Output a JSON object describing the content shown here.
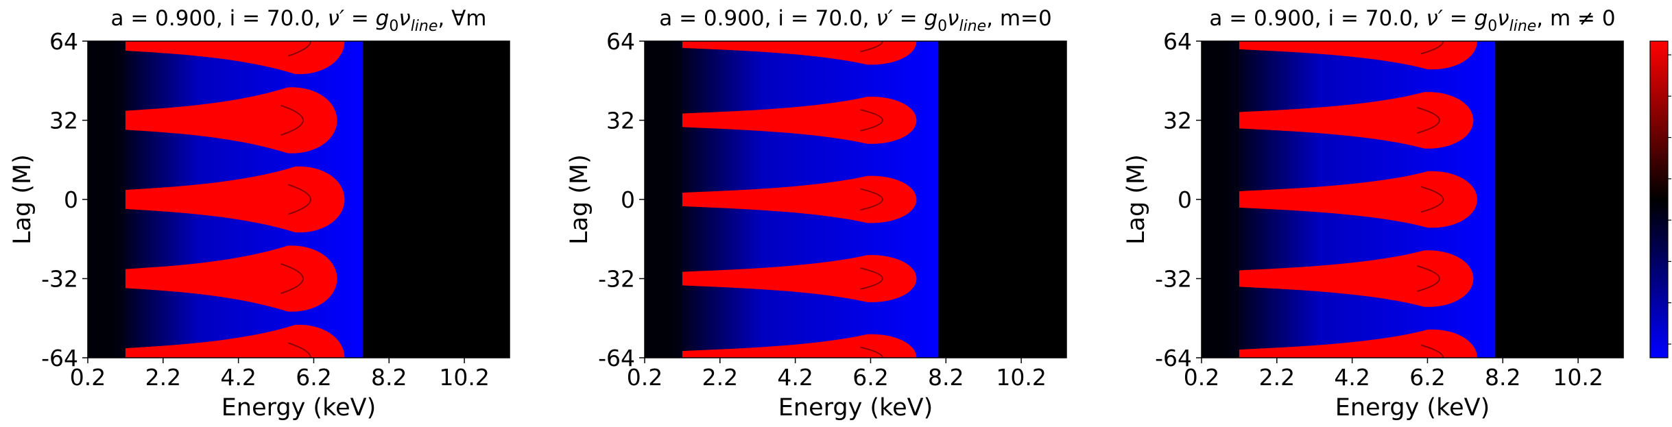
{
  "chart_data": [
    {
      "type": "heatmap",
      "title_parts": [
        "a = 0.900, i = 70.0, ",
        "ν′ = g",
        "0",
        "ν",
        "line",
        ", ∀m"
      ],
      "xlabel": "Energy (keV)",
      "ylabel": "Lag (M)",
      "xlim": [
        0.2,
        11.4
      ],
      "ylim": [
        -64,
        64
      ],
      "xticks": [
        "0.2",
        "2.2",
        "4.2",
        "6.2",
        "8.2",
        "10.2"
      ],
      "yticks": [
        "64",
        "32",
        "0",
        "-32",
        "-64"
      ],
      "blue_edge_keV": 7.5,
      "red_band_centers_M": [
        -64,
        -32,
        0,
        32,
        64
      ],
      "red_band_tip_keV": [
        6.8,
        6.6,
        6.8,
        6.6,
        6.8
      ],
      "red_band_half_width_M": 7
    },
    {
      "type": "heatmap",
      "title_parts": [
        "a = 0.900, i = 70.0, ",
        "ν′ = g",
        "0",
        "ν",
        "line",
        ", m=0"
      ],
      "xlabel": "Energy (keV)",
      "ylabel": "Lag (M)",
      "xlim": [
        0.2,
        11.4
      ],
      "ylim": [
        -64,
        64
      ],
      "xticks": [
        "0.2",
        "2.2",
        "4.2",
        "6.2",
        "8.2",
        "10.2"
      ],
      "yticks": [
        "64",
        "32",
        "0",
        "-32",
        "-64"
      ],
      "blue_edge_keV": 8.0,
      "red_band_centers_M": [
        -64,
        -32,
        0,
        32,
        64
      ],
      "red_band_tip_keV": [
        7.2,
        7.2,
        7.2,
        7.2,
        7.2
      ],
      "red_band_half_width_M": 5
    },
    {
      "type": "heatmap",
      "title_parts": [
        "a = 0.900, i = 70.0, ",
        "ν′ = g",
        "0",
        "ν",
        "line",
        ", m ≠ 0"
      ],
      "xlabel": "Energy (keV)",
      "ylabel": "Lag (M)",
      "xlim": [
        0.2,
        11.4
      ],
      "ylim": [
        -64,
        64
      ],
      "xticks": [
        "0.2",
        "2.2",
        "4.2",
        "6.2",
        "8.2",
        "10.2"
      ],
      "yticks": [
        "64",
        "32",
        "0",
        "-32",
        "-64"
      ],
      "blue_edge_keV": 8.0,
      "red_band_centers_M": [
        -64,
        -32,
        0,
        32,
        64
      ],
      "red_band_tip_keV": [
        7.3,
        7.2,
        7.3,
        7.2,
        7.3
      ],
      "red_band_half_width_M": 6
    }
  ],
  "colorbar": {
    "colors": [
      "#0000ff",
      "#000000",
      "#ff0000"
    ],
    "tick_count": 8
  },
  "colors": {
    "background": "#000000",
    "positive": "#ff0000",
    "negative": "#0000ff"
  }
}
